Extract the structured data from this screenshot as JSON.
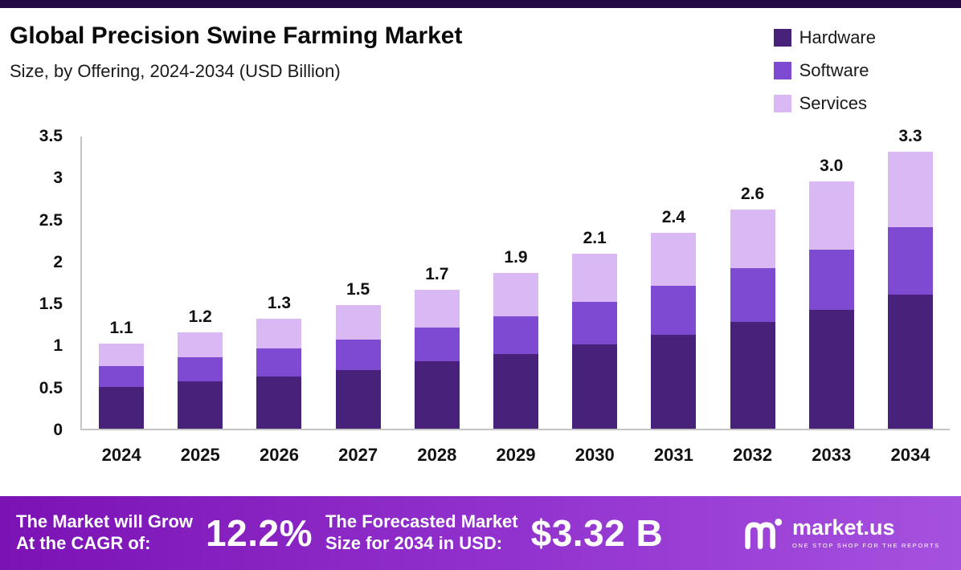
{
  "page": {
    "title": "Global Precision Swine Farming Market",
    "subtitle": "Size, by Offering, 2024-2034 (USD Billion)"
  },
  "chart_data": {
    "type": "bar",
    "stacked": true,
    "title": "Global Precision Swine Farming Market",
    "subtitle": "Size, by Offering, 2024-2034 (USD Billion)",
    "xlabel": "",
    "ylabel": "",
    "ylim": [
      0,
      3.5
    ],
    "grid": false,
    "legend_position": "top-right",
    "categories": [
      "2024",
      "2025",
      "2026",
      "2027",
      "2028",
      "2029",
      "2030",
      "2031",
      "2032",
      "2033",
      "2034"
    ],
    "series": [
      {
        "name": "Hardware",
        "color": "#48217b",
        "values": [
          0.5,
          0.56,
          0.62,
          0.7,
          0.8,
          0.89,
          1.0,
          1.12,
          1.27,
          1.42,
          1.6
        ]
      },
      {
        "name": "Software",
        "color": "#7e4ad1",
        "values": [
          0.25,
          0.29,
          0.33,
          0.36,
          0.4,
          0.45,
          0.51,
          0.58,
          0.64,
          0.72,
          0.8
        ]
      },
      {
        "name": "Services",
        "color": "#d9b8f3",
        "values": [
          0.27,
          0.3,
          0.35,
          0.41,
          0.45,
          0.52,
          0.57,
          0.63,
          0.7,
          0.81,
          0.9
        ]
      }
    ],
    "totals": [
      "1.1",
      "1.2",
      "1.3",
      "1.5",
      "1.7",
      "1.9",
      "2.1",
      "2.4",
      "2.6",
      "3.0",
      "3.3"
    ],
    "y_ticks": [
      "0",
      "0.5",
      "1",
      "1.5",
      "2",
      "2.5",
      "3",
      "3.5"
    ]
  },
  "footer": {
    "cagr_label_line1": "The Market will Grow",
    "cagr_label_line2": "At the CAGR of:",
    "cagr_value": "12.2%",
    "forecast_label_line1": "The Forecasted Market",
    "forecast_label_line2": "Size for 2034 in USD:",
    "forecast_value": "$3.32 B",
    "brand": "market.us",
    "brand_tagline": "ONE STOP SHOP FOR THE REPORTS"
  },
  "colors": {
    "top_strip": "#240a45",
    "banner_gradient_start": "#7c12b4",
    "banner_gradient_end": "#a551df",
    "hardware": "#48217b",
    "software": "#7e4ad1",
    "services": "#d9b8f3"
  }
}
